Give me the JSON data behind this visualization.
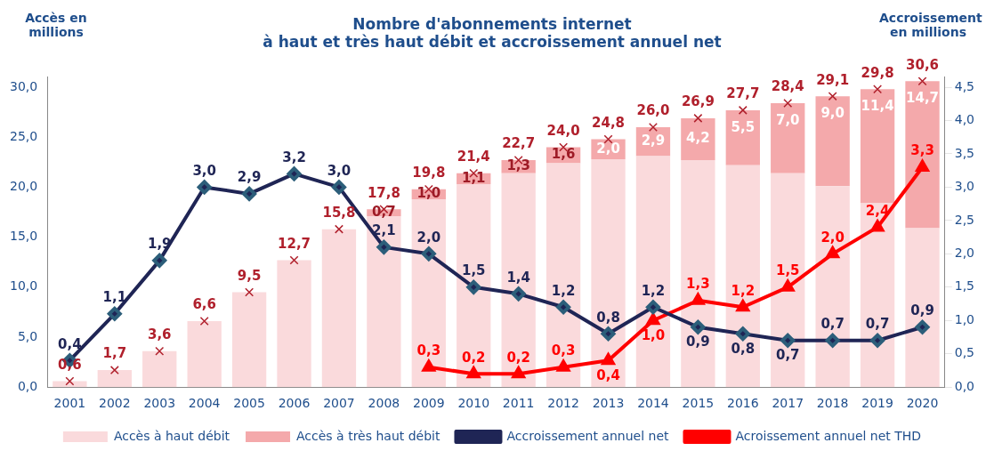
{
  "chart_data": {
    "type": "bar",
    "title": "Nombre d'abonnements internet\nà haut et très haut débit et accroissement annuel net",
    "ylabel": "Accès en millions",
    "y2label": "Accroissement en millions",
    "stacked": true,
    "legend": "bottom",
    "grid": false,
    "categories": [
      "2001",
      "2002",
      "2003",
      "2004",
      "2005",
      "2006",
      "2007",
      "2008",
      "2009",
      "2010",
      "2011",
      "2012",
      "2013",
      "2014",
      "2015",
      "2016",
      "2017",
      "2018",
      "2019",
      "2020"
    ],
    "series": [
      {
        "name": "Accès à haut débit",
        "color": "#fadadc",
        "values": [
          0.6,
          1.7,
          3.6,
          6.6,
          9.5,
          12.7,
          15.8,
          17.1,
          18.8,
          20.3,
          21.4,
          22.4,
          22.8,
          23.1,
          22.7,
          22.2,
          21.4,
          20.1,
          18.4,
          15.9
        ]
      },
      {
        "name": "Accès à très haut débit",
        "color": "#f4a9ab",
        "values": [
          null,
          null,
          null,
          null,
          null,
          null,
          null,
          0.7,
          1.0,
          1.1,
          1.3,
          1.6,
          2.0,
          2.9,
          4.2,
          5.5,
          7.0,
          9.0,
          11.4,
          14.7
        ],
        "value_labels": [
          null,
          null,
          null,
          null,
          null,
          null,
          null,
          "0,7",
          "1,0",
          "1,1",
          "1,3",
          "1,6",
          "2,0",
          "2,9",
          "4,2",
          "5,5",
          "7,0",
          "9,0",
          "11,4",
          "14,7"
        ]
      },
      {
        "type": "scatter",
        "color": "#b0202c",
        "marker": "cross",
        "values": [
          0.6,
          1.7,
          3.6,
          6.6,
          9.5,
          12.7,
          15.8,
          17.8,
          19.8,
          21.4,
          22.7,
          24.0,
          24.8,
          26.0,
          26.9,
          27.7,
          28.4,
          29.1,
          29.8,
          30.6
        ],
        "value_labels": [
          "0,6",
          "1,7",
          "3,6",
          "6,6",
          "9,5",
          "12,7",
          "15,8",
          "17,8",
          "19,8",
          "21,4",
          "22,7",
          "24,0",
          "24,8",
          "26,0",
          "26,9",
          "27,7",
          "28,4",
          "29,1",
          "29,8",
          "30,6"
        ]
      },
      {
        "name": "Accroissement annuel net",
        "type": "line",
        "axis": "y2",
        "color": "#1f2555",
        "marker": "diamond",
        "values": [
          0.4,
          1.1,
          1.9,
          3.0,
          2.9,
          3.2,
          3.0,
          2.1,
          2.0,
          1.5,
          1.4,
          1.2,
          0.8,
          1.2,
          0.9,
          0.8,
          0.7,
          0.7,
          0.7,
          0.9
        ],
        "value_labels": [
          "0,4",
          "1,1",
          "1,9",
          "3,0",
          "2,9",
          "3,2",
          "3,0",
          "2,1",
          "2,0",
          "1,5",
          "1,4",
          "1,2",
          "0,8",
          "1,2",
          "0,9",
          "0,8",
          "0,7",
          "0,7",
          "0,7",
          "0,9"
        ]
      },
      {
        "name": "Acroissement annuel net THD",
        "type": "line",
        "axis": "y2",
        "color": "#ff0000",
        "marker": "triangle",
        "values": [
          null,
          null,
          null,
          null,
          null,
          null,
          null,
          null,
          0.3,
          0.2,
          0.2,
          0.3,
          0.4,
          1.0,
          1.3,
          1.2,
          1.5,
          2.0,
          2.4,
          3.3
        ],
        "value_labels": [
          null,
          null,
          null,
          null,
          null,
          null,
          null,
          null,
          "0,3",
          "0,2",
          "0,2",
          "0,3",
          "0,4",
          "1,0",
          "1,3",
          "1,2",
          "1,5",
          "2,0",
          "2,4",
          "3,3"
        ]
      }
    ],
    "ylim": [
      0,
      31
    ],
    "yticks": [
      {
        "value": 0,
        "label": "0,0"
      },
      {
        "value": 5,
        "label": "5,0"
      },
      {
        "value": 10,
        "label": "10,0"
      },
      {
        "value": 15,
        "label": "15,0"
      },
      {
        "value": 20,
        "label": "20,0"
      },
      {
        "value": 25,
        "label": "25,0"
      },
      {
        "value": 30,
        "label": "30,0"
      }
    ],
    "y2lim": [
      0,
      4.65
    ],
    "y2ticks": [
      {
        "value": 0,
        "label": "0,0"
      },
      {
        "value": 0.5,
        "label": "0,5"
      },
      {
        "value": 1,
        "label": "1,0"
      },
      {
        "value": 1.5,
        "label": "1,5"
      },
      {
        "value": 2,
        "label": "2,0"
      },
      {
        "value": 2.5,
        "label": "2,5"
      },
      {
        "value": 3,
        "label": "3,0"
      },
      {
        "value": 3.5,
        "label": "3,5"
      },
      {
        "value": 4,
        "label": "4,0"
      },
      {
        "value": 4.5,
        "label": "4,5"
      }
    ]
  }
}
